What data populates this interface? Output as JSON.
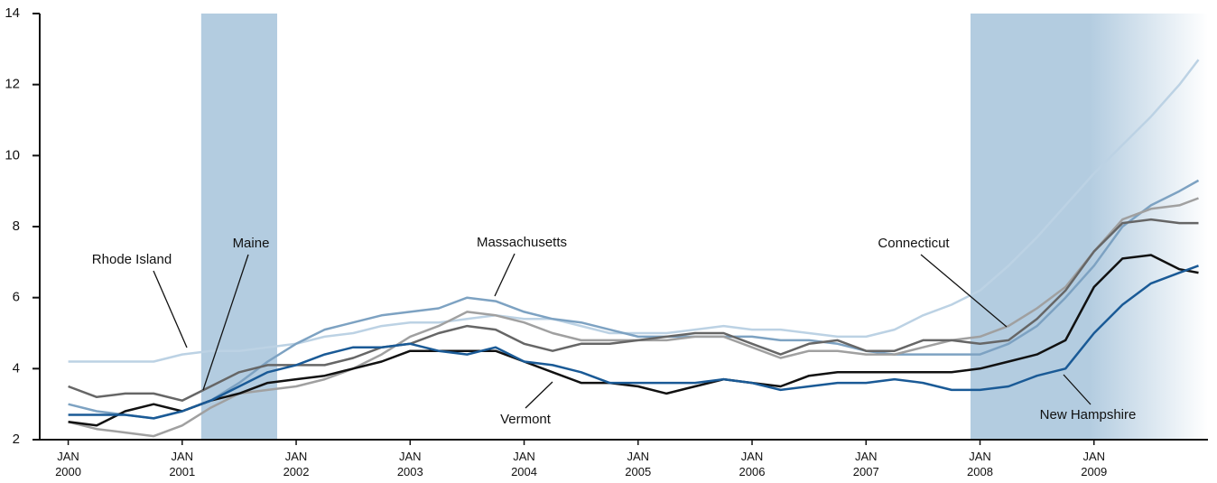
{
  "chart_data": {
    "type": "line",
    "x": [
      "2000-01",
      "2000-04",
      "2000-07",
      "2000-10",
      "2001-01",
      "2001-04",
      "2001-07",
      "2001-10",
      "2002-01",
      "2002-04",
      "2002-07",
      "2002-10",
      "2003-01",
      "2003-04",
      "2003-07",
      "2003-10",
      "2004-01",
      "2004-04",
      "2004-07",
      "2004-10",
      "2005-01",
      "2005-04",
      "2005-07",
      "2005-10",
      "2006-01",
      "2006-04",
      "2006-07",
      "2006-10",
      "2007-01",
      "2007-04",
      "2007-07",
      "2007-10",
      "2008-01",
      "2008-04",
      "2008-07",
      "2008-10",
      "2009-01",
      "2009-04",
      "2009-07",
      "2009-10",
      "2009-12"
    ],
    "series": [
      {
        "name": "Rhode Island",
        "color": "#bcd2e4",
        "values": [
          4.2,
          4.2,
          4.2,
          4.2,
          4.4,
          4.5,
          4.5,
          4.6,
          4.7,
          4.9,
          5.0,
          5.2,
          5.3,
          5.3,
          5.4,
          5.5,
          5.4,
          5.4,
          5.2,
          5.0,
          5.0,
          5.0,
          5.1,
          5.2,
          5.1,
          5.1,
          5.0,
          4.9,
          4.9,
          5.1,
          5.5,
          5.8,
          6.2,
          6.9,
          7.7,
          8.6,
          9.5,
          10.3,
          11.1,
          12.0,
          12.7
        ]
      },
      {
        "name": "Massachusetts",
        "color": "#7da2c2",
        "values": [
          3.0,
          2.8,
          2.7,
          2.6,
          2.8,
          3.1,
          3.6,
          4.2,
          4.7,
          5.1,
          5.3,
          5.5,
          5.6,
          5.7,
          6.0,
          5.9,
          5.6,
          5.4,
          5.3,
          5.1,
          4.9,
          4.9,
          4.9,
          4.9,
          4.9,
          4.8,
          4.8,
          4.7,
          4.5,
          4.4,
          4.4,
          4.4,
          4.4,
          4.7,
          5.2,
          6.0,
          6.9,
          8.0,
          8.6,
          9.0,
          9.3
        ]
      },
      {
        "name": "Maine",
        "color": "#a0a0a0",
        "values": [
          2.5,
          2.3,
          2.2,
          2.1,
          2.4,
          2.9,
          3.3,
          3.4,
          3.5,
          3.7,
          4.0,
          4.4,
          4.9,
          5.2,
          5.6,
          5.5,
          5.3,
          5.0,
          4.8,
          4.8,
          4.8,
          4.8,
          4.9,
          4.9,
          4.6,
          4.3,
          4.5,
          4.5,
          4.4,
          4.4,
          4.6,
          4.8,
          4.9,
          5.2,
          5.7,
          6.3,
          7.3,
          8.2,
          8.5,
          8.6,
          8.8
        ]
      },
      {
        "name": "Connecticut",
        "color": "#666666",
        "values": [
          3.5,
          3.2,
          3.3,
          3.3,
          3.1,
          3.5,
          3.9,
          4.1,
          4.1,
          4.1,
          4.3,
          4.6,
          4.7,
          5.0,
          5.2,
          5.1,
          4.7,
          4.5,
          4.7,
          4.7,
          4.8,
          4.9,
          5.0,
          5.0,
          4.7,
          4.4,
          4.7,
          4.8,
          4.5,
          4.5,
          4.8,
          4.8,
          4.7,
          4.8,
          5.4,
          6.2,
          7.3,
          8.1,
          8.2,
          8.1,
          8.1
        ]
      },
      {
        "name": "Vermont",
        "color": "#111111",
        "values": [
          2.5,
          2.4,
          2.8,
          3.0,
          2.8,
          3.1,
          3.3,
          3.6,
          3.7,
          3.8,
          4.0,
          4.2,
          4.5,
          4.5,
          4.5,
          4.5,
          4.2,
          3.9,
          3.6,
          3.6,
          3.5,
          3.3,
          3.5,
          3.7,
          3.6,
          3.5,
          3.8,
          3.9,
          3.9,
          3.9,
          3.9,
          3.9,
          4.0,
          4.2,
          4.4,
          4.8,
          6.3,
          7.1,
          7.2,
          6.8,
          6.7
        ]
      },
      {
        "name": "New Hampshire",
        "color": "#1a5a96",
        "values": [
          2.7,
          2.7,
          2.7,
          2.6,
          2.8,
          3.1,
          3.5,
          3.9,
          4.1,
          4.4,
          4.6,
          4.6,
          4.7,
          4.5,
          4.4,
          4.6,
          4.2,
          4.1,
          3.9,
          3.6,
          3.6,
          3.6,
          3.6,
          3.7,
          3.6,
          3.4,
          3.5,
          3.6,
          3.6,
          3.7,
          3.6,
          3.4,
          3.4,
          3.5,
          3.8,
          4.0,
          5.0,
          5.8,
          6.4,
          6.7,
          6.9
        ]
      }
    ],
    "shading": {
      "color": "#b3cce0",
      "periods": [
        {
          "start": "2001-03",
          "end": "2001-11"
        },
        {
          "start": "2007-12",
          "end": "2010-01"
        }
      ]
    },
    "xlim": [
      "1999-10",
      "2010-01"
    ],
    "xticks": [
      {
        "value": "2000-01",
        "label": "JAN 2000"
      },
      {
        "value": "2001-01",
        "label": "JAN 2001"
      },
      {
        "value": "2002-01",
        "label": "JAN 2002"
      },
      {
        "value": "2003-01",
        "label": "JAN 2003"
      },
      {
        "value": "2004-01",
        "label": "JAN 2004"
      },
      {
        "value": "2005-01",
        "label": "JAN 2005"
      },
      {
        "value": "2006-01",
        "label": "JAN 2006"
      },
      {
        "value": "2007-01",
        "label": "JAN 2007"
      },
      {
        "value": "2008-01",
        "label": "JAN 2008"
      },
      {
        "value": "2009-01",
        "label": "JAN 2009"
      }
    ],
    "ylim": [
      2,
      14
    ],
    "yticks": [
      2,
      4,
      6,
      8,
      10,
      12,
      14
    ],
    "grid": false
  }
}
